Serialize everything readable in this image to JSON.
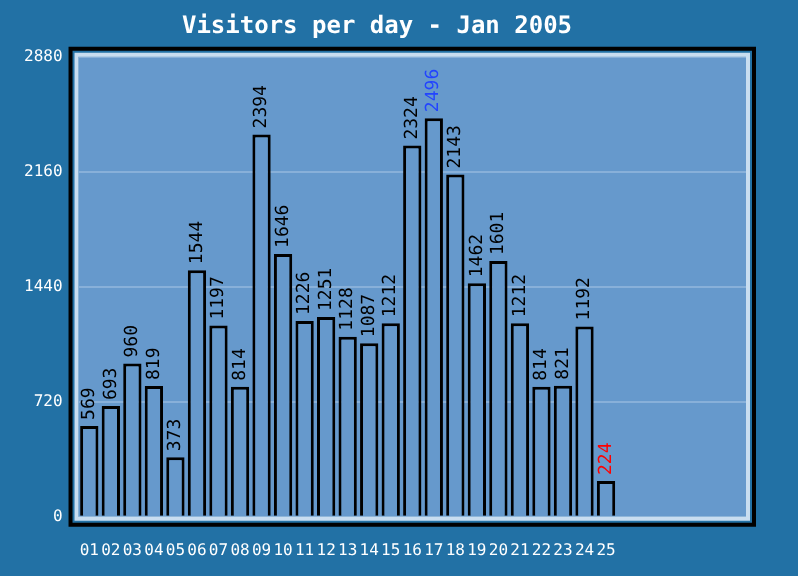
{
  "chart_data": {
    "type": "bar",
    "title": "Visitors per day - Jan 2005",
    "categories": [
      "01",
      "02",
      "03",
      "04",
      "05",
      "06",
      "07",
      "08",
      "09",
      "10",
      "11",
      "12",
      "13",
      "14",
      "15",
      "16",
      "17",
      "18",
      "19",
      "20",
      "21",
      "22",
      "23",
      "24",
      "25",
      null,
      null,
      null,
      null,
      null,
      null
    ],
    "values": [
      569,
      693,
      960,
      819,
      373,
      1544,
      1197,
      814,
      2394,
      1646,
      1226,
      1251,
      1128,
      1087,
      1212,
      2324,
      2496,
      2143,
      1462,
      1601,
      1212,
      814,
      821,
      1192,
      224,
      null,
      null,
      null,
      null,
      null,
      null
    ],
    "color": "#6699cc",
    "ylim": [
      0,
      2880
    ],
    "yticks": [
      0,
      720,
      1440,
      2160,
      2880
    ],
    "grid": "y",
    "legend": false,
    "data_labels": true
  }
}
